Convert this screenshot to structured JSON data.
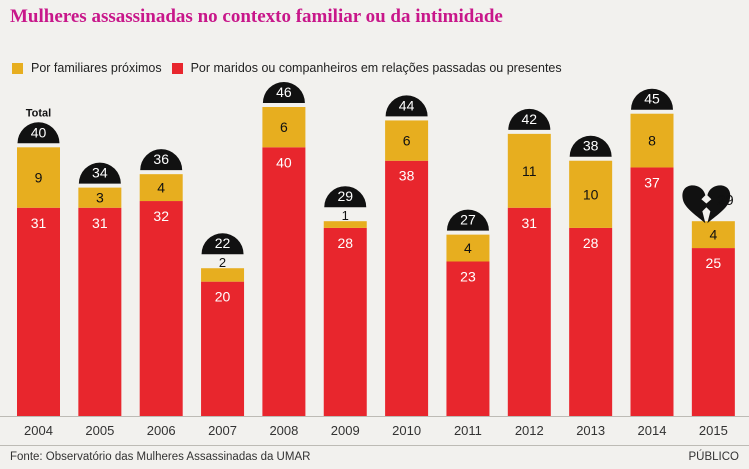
{
  "chart_data": {
    "type": "bar",
    "stacked": true,
    "title": "Mulheres assassinadas no contexto familiar ou da intimidade",
    "categories": [
      "2004",
      "2005",
      "2006",
      "2007",
      "2008",
      "2009",
      "2010",
      "2011",
      "2012",
      "2013",
      "2014",
      "2015"
    ],
    "series": [
      {
        "name": "Por maridos ou companheiros em relações passadas ou presentes",
        "color": "#e8262d",
        "values": [
          31,
          31,
          32,
          20,
          40,
          28,
          38,
          23,
          31,
          28,
          37,
          25
        ]
      },
      {
        "name": "Por familiares próximos",
        "color": "#e7ae1f",
        "values": [
          9,
          3,
          4,
          2,
          6,
          1,
          6,
          4,
          11,
          10,
          8,
          4
        ]
      }
    ],
    "totals": [
      40,
      34,
      36,
      22,
      46,
      29,
      44,
      27,
      42,
      38,
      45,
      29
    ],
    "total_label": "Total",
    "legend_position": "top-left",
    "ylim": [
      0,
      46
    ],
    "grid": false
  },
  "legend": {
    "family_label": "Por familiares próximos",
    "partner_label": "Por maridos ou companheiros em relações passadas ou presentes"
  },
  "footer": {
    "source": "Fonte: Observatório das Mulheres Assassinadas da UMAR",
    "brand": "PÚBLICO"
  },
  "colors": {
    "partner": "#e8262d",
    "family": "#e7ae1f",
    "bubble": "#111111",
    "title": "#c8178a"
  }
}
